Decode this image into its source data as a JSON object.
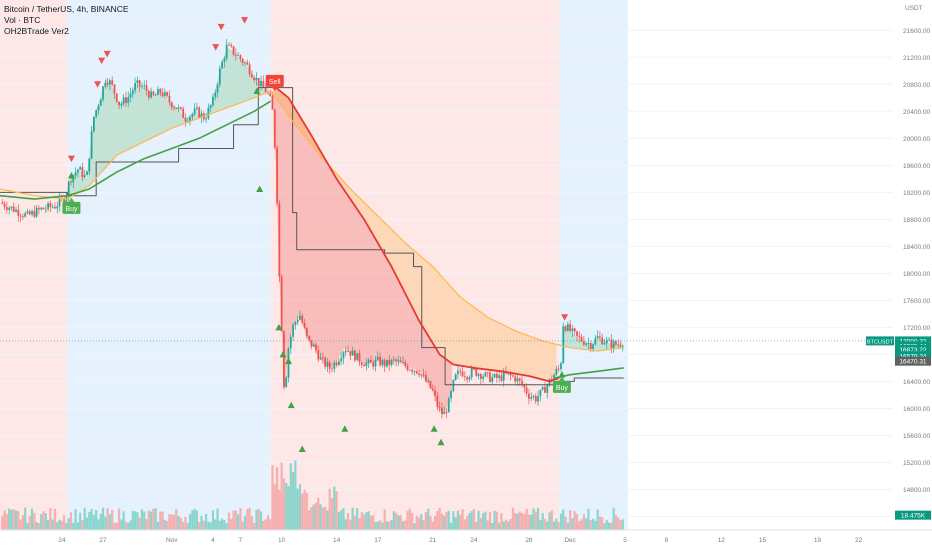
{
  "header": {
    "symbol_line": "Bitcoin / TetherUS, 4h, BINANCE",
    "volume_line": "Vol · BTC",
    "indicator_line": "OH2BTrade Ver2",
    "currency": "USDT"
  },
  "colors": {
    "up": "#26a69a",
    "down": "#ef5350",
    "zone_red": "#fde8e7",
    "zone_blue": "#e5f2fd",
    "ema_red": "#e53935",
    "ema_green": "#43a047",
    "step_line": "#555555",
    "tag_green": "#089981",
    "tag_gray": "#616161"
  },
  "chart_data": {
    "type": "candlestick",
    "y_axis": {
      "min": 14200,
      "max": 21900,
      "ticks": [
        "21600.00",
        "21200.00",
        "20800.00",
        "20400.00",
        "20000.00",
        "19600.00",
        "19200.00",
        "18800.00",
        "18400.00",
        "18000.00",
        "17600.00",
        "17200.00",
        "16800.00",
        "16400.00",
        "16000.00",
        "15600.00",
        "15200.00",
        "14800.00",
        "14400.00"
      ]
    },
    "x_axis": {
      "ticks": [
        {
          "day": 24,
          "label": "24"
        },
        {
          "day": 27,
          "label": "27"
        },
        {
          "day": 32,
          "label": "Nov"
        },
        {
          "day": 35,
          "label": "4"
        },
        {
          "day": 37,
          "label": "7"
        },
        {
          "day": 40,
          "label": "10"
        },
        {
          "day": 44,
          "label": "14"
        },
        {
          "day": 47,
          "label": "17"
        },
        {
          "day": 51,
          "label": "21"
        },
        {
          "day": 54,
          "label": "24"
        },
        {
          "day": 58,
          "label": "28"
        },
        {
          "day": 61,
          "label": "Dec"
        },
        {
          "day": 65,
          "label": "5"
        },
        {
          "day": 68,
          "label": "8"
        },
        {
          "day": 72,
          "label": "12"
        },
        {
          "day": 75,
          "label": "15"
        },
        {
          "day": 79,
          "label": "19"
        },
        {
          "day": 82,
          "label": "22"
        }
      ],
      "domain_day": [
        19.5,
        84.5
      ]
    },
    "zones": [
      {
        "from": 19.5,
        "to": 24.4,
        "color": "red"
      },
      {
        "from": 24.4,
        "to": 39.2,
        "color": "blue"
      },
      {
        "from": 39.2,
        "to": 60.2,
        "color": "red"
      },
      {
        "from": 60.2,
        "to": 65.2,
        "color": "blue"
      }
    ],
    "price_path": [
      [
        19.5,
        19050
      ],
      [
        20.5,
        18950
      ],
      [
        21.5,
        18850
      ],
      [
        22.5,
        18950
      ],
      [
        23.5,
        19000
      ],
      [
        24.2,
        19100
      ],
      [
        24.6,
        19400
      ],
      [
        25.2,
        19550
      ],
      [
        25.8,
        19400
      ],
      [
        26.3,
        20300
      ],
      [
        26.8,
        20600
      ],
      [
        27.2,
        20900
      ],
      [
        27.6,
        20800
      ],
      [
        28.2,
        20500
      ],
      [
        28.8,
        20600
      ],
      [
        29.4,
        20800
      ],
      [
        30,
        20750
      ],
      [
        30.6,
        20600
      ],
      [
        31.2,
        20700
      ],
      [
        31.8,
        20550
      ],
      [
        32.4,
        20450
      ],
      [
        33,
        20300
      ],
      [
        33.8,
        20400
      ],
      [
        34.4,
        20300
      ],
      [
        35,
        20550
      ],
      [
        35.5,
        21000
      ],
      [
        36,
        21350
      ],
      [
        36.4,
        21300
      ],
      [
        36.9,
        21200
      ],
      [
        37.4,
        21100
      ],
      [
        37.9,
        20950
      ],
      [
        38.4,
        20800
      ],
      [
        38.9,
        20700
      ],
      [
        39.3,
        20500
      ],
      [
        39.6,
        19600
      ],
      [
        39.8,
        18100
      ],
      [
        40,
        17200
      ],
      [
        40.2,
        16200
      ],
      [
        40.5,
        16900
      ],
      [
        40.8,
        17200
      ],
      [
        41.3,
        17400
      ],
      [
        41.9,
        17000
      ],
      [
        42.4,
        16900
      ],
      [
        42.9,
        16700
      ],
      [
        43.5,
        16600
      ],
      [
        44,
        16700
      ],
      [
        44.6,
        16900
      ],
      [
        45.2,
        16800
      ],
      [
        45.8,
        16700
      ],
      [
        46.4,
        16650
      ],
      [
        47,
        16700
      ],
      [
        47.6,
        16650
      ],
      [
        48.2,
        16700
      ],
      [
        48.8,
        16650
      ],
      [
        49.4,
        16600
      ],
      [
        50,
        16550
      ],
      [
        50.5,
        16400
      ],
      [
        51,
        16250
      ],
      [
        51.4,
        16000
      ],
      [
        51.8,
        15900
      ],
      [
        52.2,
        16100
      ],
      [
        52.6,
        16450
      ],
      [
        53,
        16550
      ],
      [
        53.5,
        16500
      ],
      [
        54,
        16550
      ],
      [
        54.6,
        16500
      ],
      [
        55.2,
        16450
      ],
      [
        55.8,
        16450
      ],
      [
        56.4,
        16500
      ],
      [
        57,
        16450
      ],
      [
        57.5,
        16350
      ],
      [
        58,
        16200
      ],
      [
        58.5,
        16150
      ],
      [
        59,
        16250
      ],
      [
        59.5,
        16400
      ],
      [
        60,
        16550
      ],
      [
        60.3,
        16600
      ],
      [
        60.5,
        17250
      ],
      [
        61,
        17150
      ],
      [
        61.5,
        17050
      ],
      [
        62,
        17000
      ],
      [
        62.5,
        16950
      ],
      [
        63,
        17050
      ],
      [
        63.5,
        17000
      ],
      [
        64,
        16950
      ],
      [
        64.5,
        16950
      ],
      [
        64.9,
        17000
      ]
    ],
    "ema_orange": [
      [
        19.5,
        19250
      ],
      [
        22,
        19150
      ],
      [
        24.4,
        19100
      ],
      [
        26,
        19300
      ],
      [
        28,
        19750
      ],
      [
        30,
        19950
      ],
      [
        32,
        20150
      ],
      [
        34,
        20300
      ],
      [
        36,
        20450
      ],
      [
        38,
        20600
      ],
      [
        39.2,
        20700
      ],
      [
        41,
        20200
      ],
      [
        43,
        19700
      ],
      [
        45,
        19250
      ],
      [
        47,
        18850
      ],
      [
        49,
        18450
      ],
      [
        51,
        18100
      ],
      [
        53,
        17650
      ],
      [
        55,
        17350
      ],
      [
        57,
        17150
      ],
      [
        59,
        17000
      ],
      [
        61,
        16900
      ],
      [
        63,
        16850
      ],
      [
        64.9,
        16900
      ]
    ],
    "ema_red": [
      [
        39.3,
        20800
      ],
      [
        40.5,
        20600
      ],
      [
        42,
        20100
      ],
      [
        44,
        19400
      ],
      [
        46,
        18800
      ],
      [
        48,
        18100
      ],
      [
        50,
        17300
      ],
      [
        51.5,
        16800
      ],
      [
        52.5,
        16650
      ],
      [
        54,
        16600
      ],
      [
        56,
        16550
      ],
      [
        58,
        16480
      ],
      [
        59.5,
        16400
      ],
      [
        60.2,
        16450
      ]
    ],
    "ema_green": [
      [
        19.5,
        19150
      ],
      [
        22,
        19100
      ],
      [
        24.4,
        19150
      ],
      [
        26,
        19250
      ],
      [
        28,
        19500
      ],
      [
        30,
        19700
      ],
      [
        32,
        19850
      ],
      [
        34,
        20000
      ],
      [
        36,
        20200
      ],
      [
        38,
        20400
      ],
      [
        39.2,
        20550
      ],
      [
        59.9,
        16450
      ],
      [
        61,
        16500
      ],
      [
        63,
        16550
      ],
      [
        64.9,
        16600
      ]
    ],
    "step_line": [
      [
        19.5,
        19200
      ],
      [
        24.4,
        19200
      ],
      [
        24.4,
        19150
      ],
      [
        26.5,
        19150
      ],
      [
        26.5,
        19650
      ],
      [
        32.5,
        19650
      ],
      [
        32.5,
        19850
      ],
      [
        36.5,
        19850
      ],
      [
        36.5,
        20200
      ],
      [
        38.3,
        20200
      ],
      [
        38.3,
        20750
      ],
      [
        40.8,
        20750
      ],
      [
        40.8,
        18900
      ],
      [
        41.1,
        18900
      ],
      [
        41.1,
        18350
      ],
      [
        47.5,
        18350
      ],
      [
        47.5,
        18300
      ],
      [
        49.6,
        18300
      ],
      [
        49.6,
        18100
      ],
      [
        50.2,
        18100
      ],
      [
        50.2,
        16900
      ],
      [
        51.9,
        16900
      ],
      [
        51.9,
        16350
      ],
      [
        60,
        16350
      ],
      [
        60,
        16400
      ],
      [
        61.3,
        16400
      ],
      [
        61.3,
        16450
      ],
      [
        64.9,
        16450
      ]
    ],
    "up_markers": [
      [
        24.7,
        19450
      ],
      [
        38.2,
        20700
      ],
      [
        38.4,
        19250
      ],
      [
        39.8,
        17200
      ],
      [
        40.1,
        16800
      ],
      [
        40.5,
        16700
      ],
      [
        40.7,
        16050
      ],
      [
        41.5,
        15400
      ],
      [
        44.6,
        15700
      ],
      [
        51.1,
        15700
      ],
      [
        51.6,
        15500
      ],
      [
        60.4,
        16500
      ]
    ],
    "down_markers": [
      [
        24.7,
        19700
      ],
      [
        26.6,
        20800
      ],
      [
        26.9,
        21150
      ],
      [
        27.3,
        21250
      ],
      [
        35.2,
        21350
      ],
      [
        35.6,
        21650
      ],
      [
        37.3,
        21750
      ],
      [
        60.6,
        17350
      ]
    ],
    "signals": [
      {
        "day": 24.7,
        "price": 18970,
        "text": "Buy",
        "kind": "buy"
      },
      {
        "day": 39.5,
        "price": 20850,
        "text": "Sell",
        "kind": "sell"
      },
      {
        "day": 60.4,
        "price": 16320,
        "text": "Buy",
        "kind": "buy"
      }
    ],
    "price_tags": [
      {
        "label": "BTCUSDT",
        "price": 17000,
        "value": "17000.32",
        "bg": "#089981"
      },
      {
        "price": 16925,
        "value": "16925.44",
        "bg": "#089981"
      },
      {
        "price": 16873,
        "value": "16873.22",
        "bg": "#089981"
      },
      {
        "price": 16779,
        "value": "16579.24",
        "bg": "#089981"
      },
      {
        "price": 16700,
        "value": "16470.31",
        "bg": "#616161"
      },
      {
        "price": 14420,
        "value": "18.475K",
        "bg": "#089981"
      }
    ],
    "volume_max_ratio": 0.18
  }
}
